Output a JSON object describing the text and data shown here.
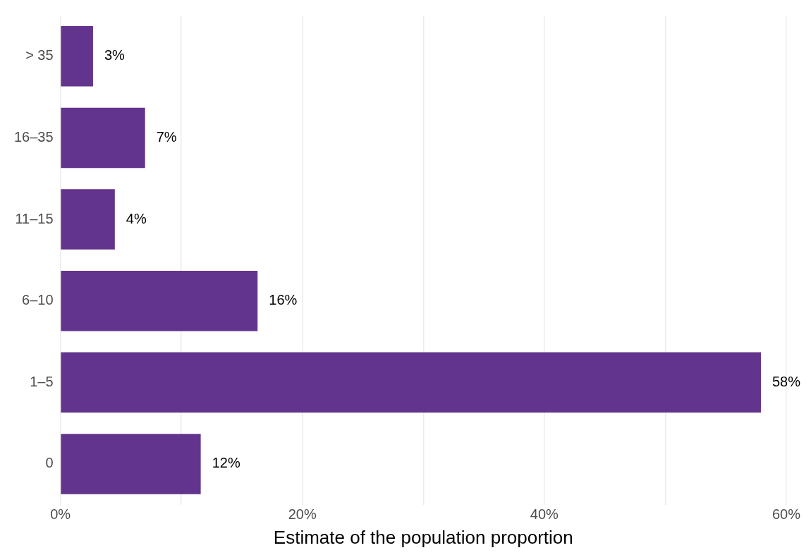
{
  "chart_data": {
    "type": "bar",
    "orientation": "horizontal",
    "xlabel": "Estimate of the population proportion",
    "categories": [
      "> 35",
      "16–35",
      "11–15",
      "6–10",
      "1–5",
      "0"
    ],
    "values": [
      2.7,
      7.0,
      4.5,
      16.3,
      57.9,
      11.6
    ],
    "value_labels": [
      "3%",
      "7%",
      "4%",
      "16%",
      "58%",
      "12%"
    ],
    "color": "#63348e",
    "xlim": [
      0,
      60
    ],
    "xticks": [
      {
        "value": 0,
        "label": "0%"
      },
      {
        "value": 10,
        "label": null
      },
      {
        "value": 20,
        "label": "20%"
      },
      {
        "value": 30,
        "label": null
      },
      {
        "value": 40,
        "label": "40%"
      },
      {
        "value": 50,
        "label": null
      },
      {
        "value": 60,
        "label": "60%"
      }
    ],
    "grid": "x"
  }
}
